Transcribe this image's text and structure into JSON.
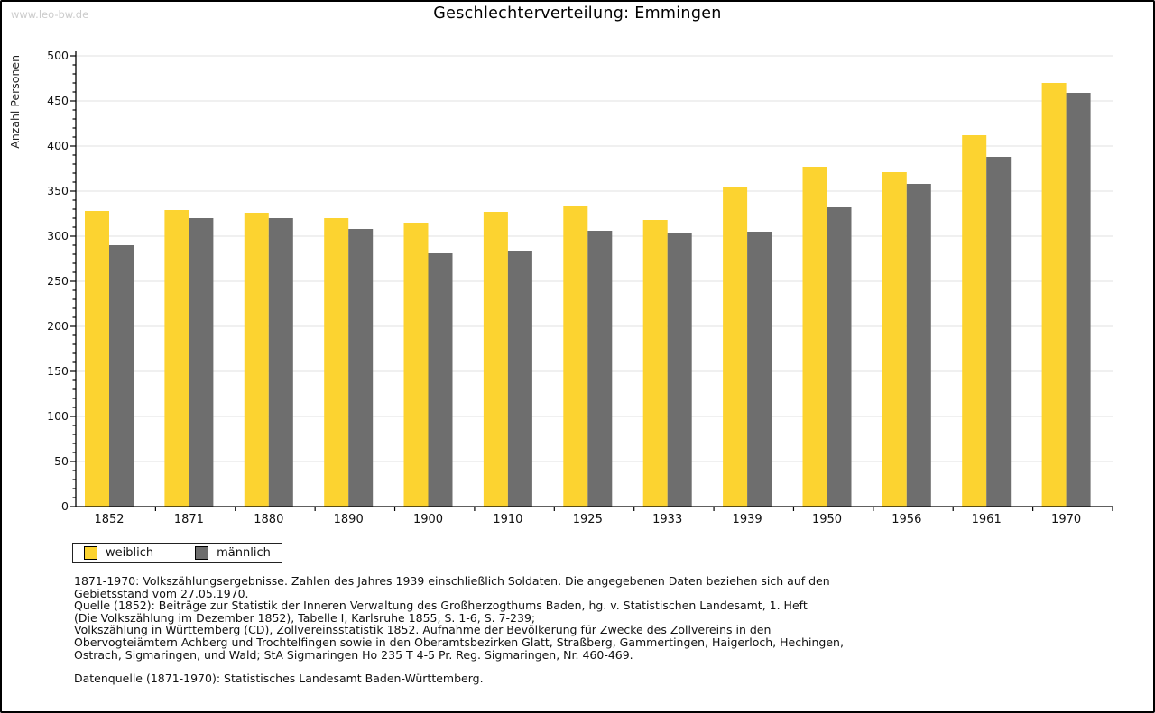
{
  "watermark": "www.leo-bw.de",
  "title": "Geschlechterverteilung: Emmingen",
  "chart_data": {
    "type": "bar",
    "title": "Geschlechterverteilung: Emmingen",
    "ylabel": "Anzahl Personen",
    "xlabel": "",
    "ylim": [
      0,
      500
    ],
    "y_major_step": 50,
    "y_minor_step": 10,
    "grid": "horizontal-major",
    "legend_position": "bottom-left",
    "categories": [
      "1852",
      "1871",
      "1880",
      "1890",
      "1900",
      "1910",
      "1925",
      "1933",
      "1939",
      "1950",
      "1956",
      "1961",
      "1970"
    ],
    "series": [
      {
        "id": "weiblich",
        "name": "weiblich",
        "color": "#FCD330",
        "values": [
          328,
          329,
          326,
          320,
          315,
          327,
          334,
          318,
          355,
          377,
          371,
          412,
          470
        ]
      },
      {
        "id": "maennlich",
        "name": "männlich",
        "color": "#6E6E6E",
        "values": [
          290,
          320,
          320,
          308,
          281,
          283,
          306,
          304,
          305,
          332,
          358,
          388,
          459
        ]
      }
    ],
    "colors": {
      "gridline": "#E0E0E0",
      "axis": "#000000",
      "tick_label": "#111111"
    }
  },
  "footer": {
    "source_lines": [
      "1871-1970: Volkszählungsergebnisse. Zahlen des Jahres 1939 einschließlich Soldaten. Die angegebenen Daten beziehen sich auf den",
      "Gebietsstand vom 27.05.1970.",
      "Quelle (1852): Beiträge zur Statistik der Inneren Verwaltung des Großherzogthums Baden, hg. v. Statistischen Landesamt, 1. Heft",
      "(Die Volkszählung im Dezember 1852), Tabelle I, Karlsruhe 1855, S. 1-6, S. 7-239;",
      "Volkszählung in Württemberg (CD), Zollvereinsstatistik 1852. Aufnahme der Bevölkerung für Zwecke des Zollvereins in den",
      "Obervogteiämtern Achberg und Trochtelfingen sowie in den Oberamtsbezirken Glatt, Straßberg, Gammertingen, Haigerloch, Hechingen,",
      "Ostrach, Sigmaringen, und Wald; StA Sigmaringen Ho 235 T 4-5 Pr. Reg. Sigmaringen, Nr. 460-469."
    ],
    "datasource_line": "Datenquelle (1871-1970): Statistisches Landesamt Baden-Württemberg."
  }
}
